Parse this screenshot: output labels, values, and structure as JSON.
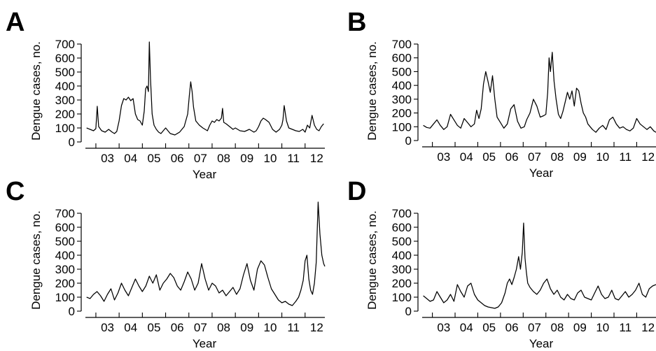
{
  "chart_data": [
    {
      "type": "line",
      "panel_label": "A",
      "xlabel": "Year",
      "ylabel": "Dengue cases, no.",
      "ylim": [
        0,
        700
      ],
      "yticks": [
        0,
        100,
        200,
        300,
        400,
        500,
        600,
        700
      ],
      "xticks": [
        "03",
        "04",
        "05",
        "06",
        "07",
        "08",
        "09",
        "10",
        "11",
        "12"
      ],
      "xlim": [
        2002.55,
        2012.85
      ],
      "series": [
        {
          "x": [
            2002.6,
            2002.75,
            2002.9,
            2003.0,
            2003.06,
            2003.12,
            2003.25,
            2003.4,
            2003.55,
            2003.7,
            2003.8,
            2003.9,
            2004.0,
            2004.1,
            2004.2,
            2004.3,
            2004.4,
            2004.5,
            2004.6,
            2004.7,
            2004.8,
            2004.9,
            2005.0,
            2005.08,
            2005.14,
            2005.2,
            2005.26,
            2005.3,
            2005.35,
            2005.42,
            2005.5,
            2005.6,
            2005.7,
            2005.8,
            2005.9,
            2006.0,
            2006.2,
            2006.4,
            2006.6,
            2006.8,
            2006.95,
            2007.02,
            2007.08,
            2007.14,
            2007.2,
            2007.3,
            2007.45,
            2007.6,
            2007.8,
            2007.9,
            2008.0,
            2008.1,
            2008.2,
            2008.3,
            2008.4,
            2008.45,
            2008.5,
            2008.6,
            2008.75,
            2008.9,
            2009.0,
            2009.2,
            2009.4,
            2009.6,
            2009.8,
            2009.9,
            2010.0,
            2010.1,
            2010.2,
            2010.3,
            2010.45,
            2010.6,
            2010.75,
            2010.9,
            2011.0,
            2011.05,
            2011.1,
            2011.2,
            2011.3,
            2011.45,
            2011.6,
            2011.75,
            2011.9,
            2012.0,
            2012.1,
            2012.2,
            2012.3,
            2012.4,
            2012.5,
            2012.6,
            2012.7,
            2012.8
          ],
          "values": [
            100,
            90,
            80,
            95,
            255,
            110,
            80,
            70,
            90,
            70,
            60,
            75,
            150,
            260,
            310,
            300,
            320,
            295,
            310,
            200,
            160,
            150,
            120,
            220,
            380,
            400,
            360,
            715,
            450,
            200,
            120,
            90,
            70,
            60,
            80,
            100,
            60,
            50,
            70,
            110,
            200,
            330,
            430,
            360,
            250,
            150,
            120,
            100,
            80,
            120,
            150,
            140,
            160,
            150,
            170,
            240,
            140,
            130,
            110,
            90,
            100,
            80,
            75,
            90,
            70,
            80,
            110,
            150,
            170,
            160,
            140,
            90,
            70,
            90,
            120,
            160,
            260,
            150,
            100,
            90,
            80,
            75,
            90,
            70,
            120,
            100,
            190,
            120,
            90,
            80,
            110,
            130
          ]
        }
      ]
    },
    {
      "type": "line",
      "panel_label": "B",
      "xlabel": "Year",
      "ylabel": "Dengue cases, no.",
      "ylim": [
        0,
        700
      ],
      "yticks": [
        0,
        100,
        200,
        300,
        400,
        500,
        600,
        700
      ],
      "xticks": [
        "03",
        "04",
        "05",
        "06",
        "07",
        "08",
        "09",
        "10",
        "11",
        "12"
      ],
      "xlim": [
        2002.55,
        2012.85
      ],
      "series": [
        {
          "x": [
            2002.6,
            2002.75,
            2002.9,
            2003.05,
            2003.2,
            2003.35,
            2003.5,
            2003.65,
            2003.8,
            2003.95,
            2004.1,
            2004.25,
            2004.4,
            2004.55,
            2004.7,
            2004.85,
            2004.95,
            2005.05,
            2005.15,
            2005.25,
            2005.35,
            2005.45,
            2005.55,
            2005.65,
            2005.75,
            2005.85,
            2006.0,
            2006.15,
            2006.3,
            2006.45,
            2006.6,
            2006.75,
            2006.9,
            2007.05,
            2007.15,
            2007.3,
            2007.45,
            2007.6,
            2007.75,
            2007.9,
            2008.0,
            2008.08,
            2008.14,
            2008.2,
            2008.28,
            2008.36,
            2008.45,
            2008.55,
            2008.65,
            2008.75,
            2008.85,
            2008.95,
            2009.05,
            2009.15,
            2009.25,
            2009.35,
            2009.45,
            2009.55,
            2009.65,
            2009.75,
            2009.85,
            2009.95,
            2010.05,
            2010.2,
            2010.35,
            2010.5,
            2010.65,
            2010.8,
            2010.95,
            2011.1,
            2011.25,
            2011.4,
            2011.55,
            2011.7,
            2011.85,
            2012.0,
            2012.15,
            2012.3,
            2012.45,
            2012.6,
            2012.75,
            2012.85
          ],
          "values": [
            110,
            95,
            90,
            120,
            150,
            110,
            80,
            100,
            190,
            150,
            110,
            90,
            160,
            130,
            100,
            120,
            220,
            160,
            230,
            410,
            500,
            430,
            350,
            470,
            300,
            170,
            130,
            90,
            120,
            230,
            260,
            140,
            90,
            100,
            150,
            200,
            300,
            250,
            170,
            180,
            190,
            350,
            600,
            500,
            640,
            430,
            300,
            190,
            160,
            210,
            280,
            350,
            300,
            360,
            250,
            380,
            360,
            270,
            200,
            170,
            120,
            100,
            80,
            60,
            90,
            110,
            80,
            150,
            170,
            120,
            90,
            100,
            80,
            70,
            90,
            160,
            120,
            100,
            80,
            100,
            70,
            60
          ]
        }
      ]
    },
    {
      "type": "line",
      "panel_label": "C",
      "xlabel": "Year",
      "ylabel": "Dengue cases, no.",
      "ylim": [
        0,
        700
      ],
      "yticks": [
        0,
        100,
        200,
        300,
        400,
        500,
        600,
        700
      ],
      "xticks": [
        "03",
        "04",
        "05",
        "06",
        "07",
        "08",
        "09",
        "10",
        "11",
        "12"
      ],
      "xlim": [
        2002.55,
        2012.85
      ],
      "series": [
        {
          "x": [
            2002.6,
            2002.75,
            2002.9,
            2003.05,
            2003.2,
            2003.35,
            2003.5,
            2003.65,
            2003.8,
            2003.95,
            2004.1,
            2004.25,
            2004.4,
            2004.55,
            2004.7,
            2004.85,
            2005.0,
            2005.15,
            2005.3,
            2005.45,
            2005.6,
            2005.75,
            2005.9,
            2006.05,
            2006.2,
            2006.35,
            2006.5,
            2006.65,
            2006.8,
            2006.95,
            2007.1,
            2007.25,
            2007.4,
            2007.55,
            2007.7,
            2007.85,
            2008.0,
            2008.15,
            2008.3,
            2008.45,
            2008.6,
            2008.75,
            2008.9,
            2009.05,
            2009.2,
            2009.35,
            2009.5,
            2009.65,
            2009.8,
            2009.95,
            2010.1,
            2010.25,
            2010.4,
            2010.55,
            2010.7,
            2010.85,
            2011.0,
            2011.15,
            2011.3,
            2011.45,
            2011.6,
            2011.72,
            2011.82,
            2011.92,
            2012.0,
            2012.08,
            2012.16,
            2012.24,
            2012.32,
            2012.4,
            2012.48,
            2012.56,
            2012.64,
            2012.72,
            2012.8,
            2012.85
          ],
          "values": [
            100,
            90,
            120,
            140,
            110,
            70,
            120,
            160,
            80,
            130,
            200,
            150,
            110,
            170,
            230,
            180,
            140,
            180,
            250,
            200,
            260,
            150,
            200,
            230,
            270,
            240,
            180,
            150,
            210,
            280,
            230,
            150,
            200,
            340,
            230,
            150,
            200,
            180,
            130,
            150,
            110,
            140,
            170,
            120,
            160,
            260,
            340,
            220,
            150,
            300,
            360,
            330,
            240,
            160,
            120,
            80,
            60,
            70,
            50,
            40,
            70,
            100,
            150,
            220,
            360,
            400,
            230,
            150,
            120,
            200,
            350,
            780,
            550,
            400,
            340,
            320
          ]
        }
      ]
    },
    {
      "type": "line",
      "panel_label": "D",
      "xlabel": "Year",
      "ylabel": "Dengue cases, no.",
      "ylim": [
        0,
        700
      ],
      "yticks": [
        0,
        100,
        200,
        300,
        400,
        500,
        600,
        700
      ],
      "xticks": [
        "03",
        "04",
        "05",
        "06",
        "07",
        "08",
        "09",
        "10",
        "11",
        "12"
      ],
      "xlim": [
        2002.55,
        2012.85
      ],
      "series": [
        {
          "x": [
            2002.6,
            2002.75,
            2002.9,
            2003.05,
            2003.2,
            2003.35,
            2003.5,
            2003.65,
            2003.8,
            2003.95,
            2004.1,
            2004.25,
            2004.4,
            2004.55,
            2004.7,
            2004.85,
            2005.0,
            2005.15,
            2005.3,
            2005.45,
            2005.6,
            2005.75,
            2005.9,
            2006.05,
            2006.2,
            2006.3,
            2006.4,
            2006.5,
            2006.6,
            2006.7,
            2006.8,
            2006.88,
            2006.96,
            2007.02,
            2007.08,
            2007.14,
            2007.2,
            2007.3,
            2007.45,
            2007.6,
            2007.75,
            2007.9,
            2008.05,
            2008.2,
            2008.35,
            2008.5,
            2008.65,
            2008.8,
            2008.95,
            2009.1,
            2009.25,
            2009.4,
            2009.55,
            2009.7,
            2009.85,
            2010.0,
            2010.15,
            2010.3,
            2010.45,
            2010.6,
            2010.75,
            2010.9,
            2011.05,
            2011.2,
            2011.35,
            2011.5,
            2011.65,
            2011.8,
            2011.95,
            2012.1,
            2012.25,
            2012.4,
            2012.55,
            2012.7,
            2012.85
          ],
          "values": [
            110,
            90,
            70,
            80,
            140,
            100,
            60,
            80,
            120,
            70,
            190,
            140,
            100,
            180,
            200,
            120,
            80,
            60,
            40,
            30,
            25,
            20,
            30,
            60,
            130,
            200,
            230,
            190,
            240,
            300,
            390,
            300,
            420,
            630,
            380,
            280,
            200,
            170,
            140,
            120,
            150,
            200,
            230,
            160,
            120,
            150,
            100,
            80,
            120,
            90,
            80,
            130,
            150,
            100,
            90,
            80,
            130,
            180,
            120,
            90,
            100,
            150,
            90,
            80,
            110,
            140,
            100,
            120,
            150,
            200,
            120,
            100,
            160,
            180,
            190
          ]
        }
      ]
    }
  ]
}
